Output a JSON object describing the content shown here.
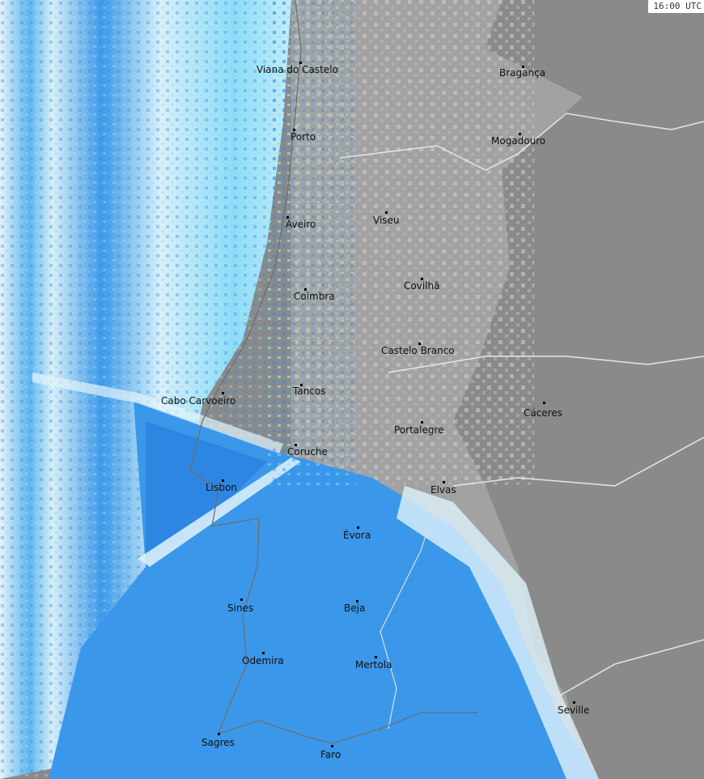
{
  "timestamp": "16:00 UTC",
  "colors": {
    "land_spain": "#8a8a8a",
    "land_portugal": "#a2a2a2",
    "clutter": "#c8c8c8",
    "radar_light": "#dff3fb",
    "radar_cyan": "#8fe0f8",
    "radar_mid": "#54b8f0",
    "radar_blue": "#2f8de8",
    "border": "#e6e6e6",
    "coast": "#6e6e6e"
  },
  "cities": [
    {
      "name": "Viana do Castelo"
    },
    {
      "name": "Bragança"
    },
    {
      "name": "Porto"
    },
    {
      "name": "Mogadouro"
    },
    {
      "name": "Aveiro"
    },
    {
      "name": "Viseu"
    },
    {
      "name": "Covilhã"
    },
    {
      "name": "Coimbra"
    },
    {
      "name": "Castelo Branco"
    },
    {
      "name": "Tancos"
    },
    {
      "name": "Cabo Carvoeiro"
    },
    {
      "name": "Cáceres"
    },
    {
      "name": "Portalegre"
    },
    {
      "name": "Coruche"
    },
    {
      "name": "Lisbon"
    },
    {
      "name": "Elvas"
    },
    {
      "name": "Évora"
    },
    {
      "name": "Sines"
    },
    {
      "name": "Beja"
    },
    {
      "name": "Odemira"
    },
    {
      "name": "Mertola"
    },
    {
      "name": "Seville"
    },
    {
      "name": "Sagres"
    },
    {
      "name": "Faro"
    }
  ]
}
